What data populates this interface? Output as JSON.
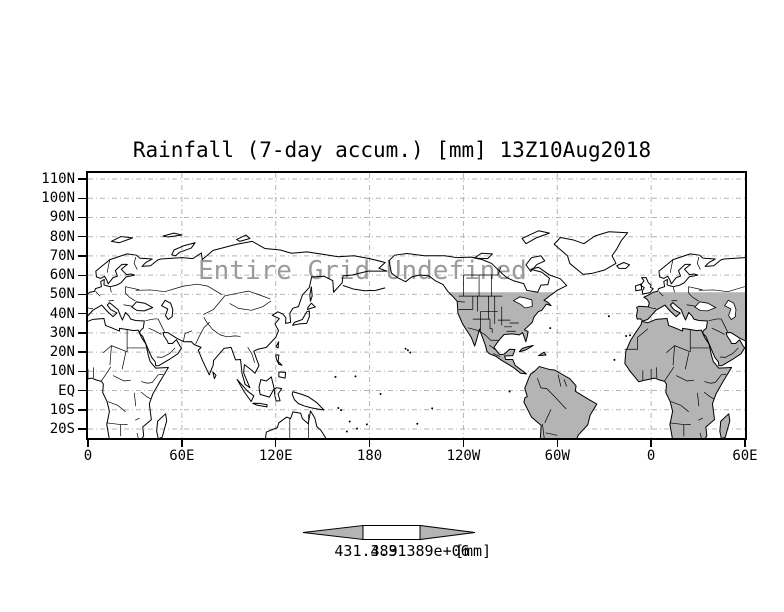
{
  "title": "Rainfall (7-day accum.) [mm] 13Z10Aug2018",
  "watermark": "Entire Grid Undefined",
  "axes": {
    "lat_ticks": [
      "110N",
      "100N",
      "90N",
      "80N",
      "70N",
      "60N",
      "50N",
      "40N",
      "30N",
      "20N",
      "10N",
      "EQ",
      "10S",
      "20S"
    ],
    "lon_ticks": [
      "0",
      "60E",
      "120E",
      "180",
      "120W",
      "60W",
      "0",
      "60E"
    ]
  },
  "colorbar": {
    "min_label": "431.389",
    "max_label": "4.31389e+06",
    "units_label": "[mm]"
  },
  "colors": {
    "land_fill": "#b4b4b4",
    "grid_line": "#b4b4b4",
    "watermark_text": "#9b9b9b",
    "frame": "#000000",
    "arrow_fill": "#b4b4b4"
  },
  "chart_data": {
    "type": "heatmap",
    "title": "Rainfall (7-day accum.) [mm] 13Z10Aug2018",
    "variable": "Rainfall (7-day accum.)",
    "units": "mm",
    "valid_time": "13Z10Aug2018",
    "projection": "lat-lon world map",
    "x_tick_labels": [
      "0",
      "60E",
      "120E",
      "180",
      "120W",
      "60W",
      "0",
      "60E"
    ],
    "y_tick_labels": [
      "110N",
      "100N",
      "90N",
      "80N",
      "70N",
      "60N",
      "50N",
      "40N",
      "30N",
      "20N",
      "10N",
      "EQ",
      "10S",
      "20S"
    ],
    "lon_range_deg_east": [
      0,
      420
    ],
    "lat_range_deg": [
      -25,
      113
    ],
    "grid": true,
    "values_status": "Entire Grid Undefined (no defined data values in grid)",
    "shading_note": "land shaded gray over the Americas, Africa, Middle East and Europe south of ~51N",
    "colorbar": {
      "position": "bottom",
      "style": "double-arrow",
      "min": 431.389,
      "max": 4313890,
      "min_label": "431.389",
      "max_label": "4.31389e+06",
      "units": "[mm]"
    }
  }
}
